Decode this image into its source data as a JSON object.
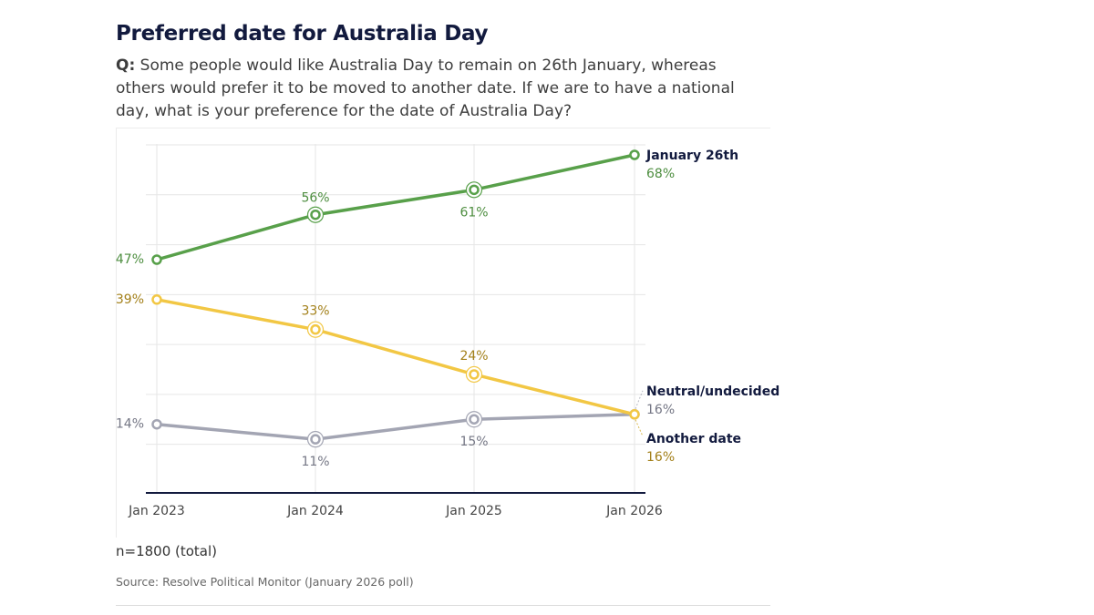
{
  "header": {
    "title": "Preferred date for Australia Day",
    "question_prefix": "Q:",
    "question_text": " Some people would like Australia Day to remain on 26th January, whereas others would prefer it to be moved to another date. If we are to have a national day, what is your preference for the date of Australia Day?"
  },
  "footer": {
    "note": "n=1800 (total)",
    "source": "Source: Resolve Political Monitor (January 2026 poll)"
  },
  "colors": {
    "jan26": "#58a04a",
    "another": "#f2c744",
    "neutral": "#a3a5b3",
    "jan26_text": "#4e8e40",
    "another_text": "#a3801a",
    "neutral_text": "#757785",
    "axis": "#121a3e",
    "grid": "#e6e6e6"
  },
  "chart_data": {
    "type": "line",
    "title": "Preferred date for Australia Day",
    "xlabel": "",
    "ylabel": "",
    "categories": [
      "Jan 2023",
      "Jan 2024",
      "Jan 2025",
      "Jan 2026"
    ],
    "ylim": [
      0,
      70
    ],
    "grid": true,
    "series": [
      {
        "key": "jan26",
        "name": "January 26th",
        "values": [
          47,
          56,
          61,
          68
        ],
        "labels": [
          "47%",
          "56%",
          "61%",
          "68%"
        ]
      },
      {
        "key": "another",
        "name": "Another date",
        "values": [
          39,
          33,
          24,
          16
        ],
        "labels": [
          "39%",
          "33%",
          "24%",
          "16%"
        ]
      },
      {
        "key": "neutral",
        "name": "Neutral/undecided",
        "values": [
          14,
          11,
          15,
          16
        ],
        "labels": [
          "14%",
          "11%",
          "15%",
          "16%"
        ]
      }
    ]
  }
}
